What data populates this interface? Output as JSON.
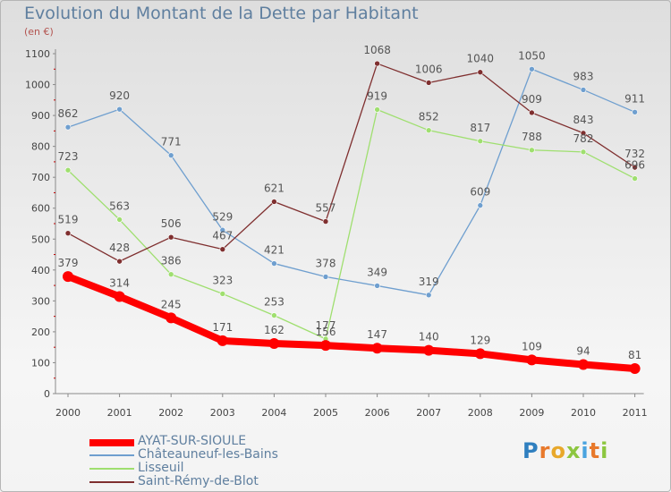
{
  "header": {
    "title": "Evolution du Montant de la Dette par Habitant",
    "subtitle": "(en €)"
  },
  "logo": {
    "letters": [
      "P",
      "r",
      "o",
      "x",
      "i",
      "t",
      "i"
    ],
    "colors": [
      "#2f7fbf",
      "#e8792b",
      "#e8a82b",
      "#8cc63f",
      "#4aa3df",
      "#e8792b",
      "#8cc63f"
    ]
  },
  "chart_data": {
    "type": "line",
    "title": "Evolution du Montant de la Dette par Habitant",
    "subtitle": "(en €)",
    "xlabel": "",
    "ylabel": "",
    "ylim": [
      0,
      1100
    ],
    "yticks": [
      0,
      100,
      200,
      300,
      400,
      500,
      600,
      700,
      800,
      900,
      1000,
      1100
    ],
    "grid": false,
    "legend_placement": "bottom-left",
    "x": [
      "2000",
      "2001",
      "2002",
      "2003",
      "2004",
      "2005",
      "2006",
      "2007",
      "2008",
      "2009",
      "2010",
      "2011"
    ],
    "series": [
      {
        "name": "AYAT-SUR-SIOULE",
        "color": "#ff0000",
        "values": [
          379,
          314,
          245,
          171,
          162,
          156,
          147,
          140,
          129,
          109,
          94,
          81
        ],
        "labels": [
          "379",
          "314",
          "245",
          "171",
          "162",
          "156",
          "147",
          "140",
          "129",
          "109",
          "94",
          "81"
        ]
      },
      {
        "name": "Châteauneuf-les-Bains",
        "color": "#6f9fcf",
        "values": [
          862,
          920,
          771,
          529,
          421,
          378,
          349,
          319,
          609,
          1050,
          983,
          911
        ],
        "labels": [
          "862",
          "920",
          "771",
          "529",
          "421",
          "378",
          "349",
          "319",
          "609",
          "1050",
          "983",
          "911"
        ]
      },
      {
        "name": "Lisseuil",
        "color": "#9fdf6f",
        "values": [
          723,
          563,
          386,
          323,
          253,
          177,
          919,
          852,
          817,
          788,
          782,
          696
        ],
        "labels": [
          "723",
          "563",
          "386",
          "323",
          "253",
          "177",
          "919",
          "852",
          "817",
          "788",
          "782",
          "696"
        ]
      },
      {
        "name": "Saint-Rémy-de-Blot",
        "color": "#7f2f2f",
        "values": [
          519,
          428,
          506,
          467,
          621,
          557,
          1068,
          1006,
          1040,
          909,
          843,
          732
        ],
        "labels": [
          "519",
          "428",
          "506",
          "467",
          "621",
          "557",
          "1068",
          "1006",
          "1040",
          "909",
          "843",
          "732"
        ]
      }
    ]
  }
}
